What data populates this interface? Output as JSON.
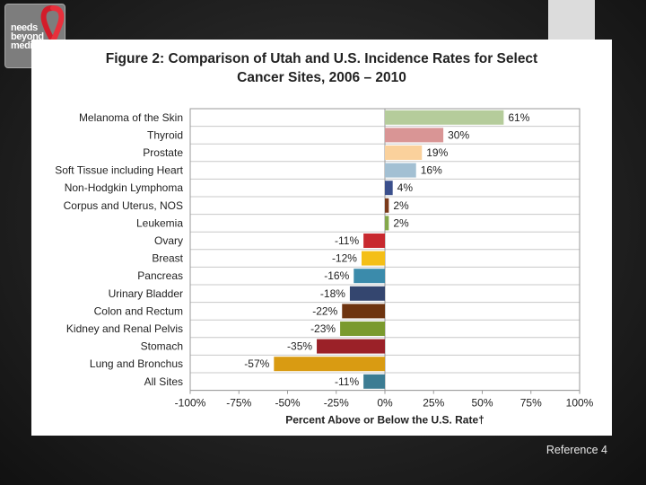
{
  "logo": {
    "text_lines": [
      "needs",
      "beyond",
      "medicine"
    ]
  },
  "reference": "Reference 4",
  "chart_data": {
    "type": "bar",
    "orientation": "horizontal",
    "title_lines": [
      "Figure 2: Comparison of Utah and U.S. Incidence Rates for Select",
      "Cancer Sites, 2006 – 2010"
    ],
    "xlabel": "Percent Above or Below the U.S. Rate†",
    "ylabel": "",
    "xlim": [
      -100,
      100
    ],
    "xticks": [
      -100,
      -75,
      -50,
      -25,
      0,
      25,
      50,
      75,
      100
    ],
    "xtick_labels": [
      "-100%",
      "-75%",
      "-50%",
      "-25%",
      "0%",
      "25%",
      "50%",
      "75%",
      "100%"
    ],
    "grid": true,
    "categories": [
      "Melanoma of the Skin",
      "Thyroid",
      "Prostate",
      "Soft Tissue including Heart",
      "Non-Hodgkin Lymphoma",
      "Corpus and Uterus, NOS",
      "Leukemia",
      "Ovary",
      "Breast",
      "Pancreas",
      "Urinary Bladder",
      "Colon and Rectum",
      "Kidney and Renal Pelvis",
      "Stomach",
      "Lung and Bronchus",
      "All Sites"
    ],
    "values": [
      61,
      30,
      19,
      16,
      4,
      2,
      2,
      -11,
      -12,
      -16,
      -18,
      -22,
      -23,
      -35,
      -57,
      -11
    ],
    "value_labels": [
      "61%",
      "30%",
      "19%",
      "16%",
      "4%",
      "2%",
      "2%",
      "-11%",
      "-12%",
      "-16%",
      "-18%",
      "-22%",
      "-23%",
      "-35%",
      "-57%",
      "-11%"
    ],
    "colors": [
      "#b5cc9b",
      "#d99595",
      "#fad19c",
      "#a3c0d3",
      "#3a4f8c",
      "#7a3a1a",
      "#84a84a",
      "#c8292f",
      "#f4bf17",
      "#3b8bab",
      "#34466f",
      "#6e3410",
      "#7a9a2e",
      "#9b2128",
      "#d99b12",
      "#3c7c93"
    ]
  }
}
